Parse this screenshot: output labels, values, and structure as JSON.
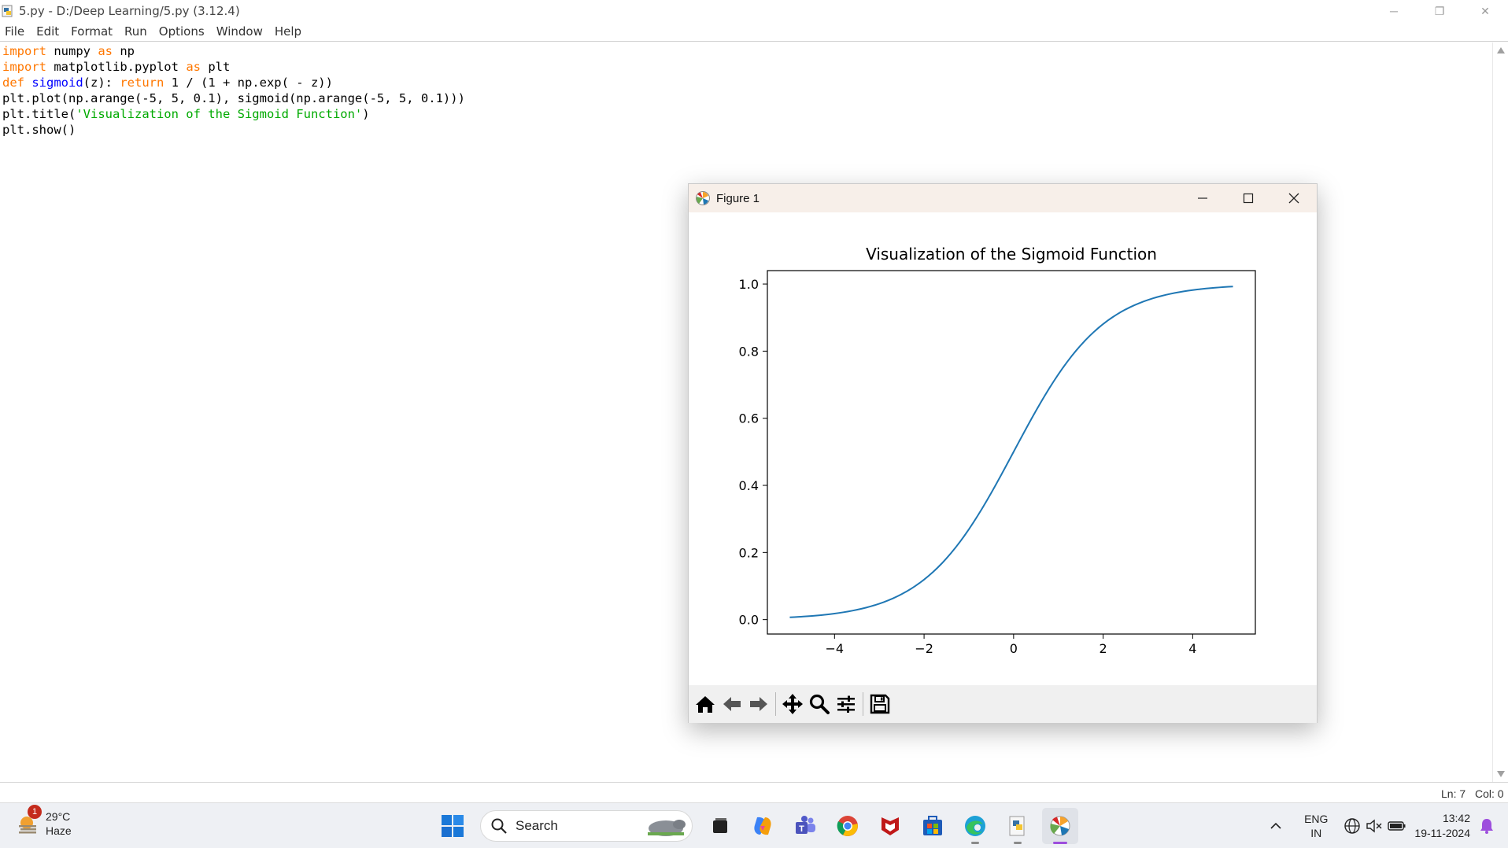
{
  "window": {
    "title": "5.py - D:/Deep Learning/5.py (3.12.4)",
    "minimize": "─",
    "maximize": "❐",
    "close": "✕"
  },
  "menu": [
    "File",
    "Edit",
    "Format",
    "Run",
    "Options",
    "Window",
    "Help"
  ],
  "code": {
    "line1": {
      "kw1": "import",
      "mid": " numpy ",
      "kw2": "as",
      "end": " np"
    },
    "line2": {
      "kw1": "import",
      "mid": " matplotlib.pyplot ",
      "kw2": "as",
      "end": " plt"
    },
    "line3": {
      "kw1": "def",
      "fn": " sigmoid",
      "mid": "(z): ",
      "kw2": "return",
      "end": " 1 / (1 + np.exp( - z))"
    },
    "line4": "plt.plot(np.arange(-5, 5, 0.1), sigmoid(np.arange(-5, 5, 0.1)))",
    "line5": {
      "start": "plt.title(",
      "str": "'Visualization of the Sigmoid Function'",
      "end": ")"
    },
    "line6": "plt.show()"
  },
  "status": {
    "line": "Ln: 7",
    "col": "Col: 0"
  },
  "figure": {
    "title": "Figure 1",
    "toolbar": [
      "home-icon",
      "back-icon",
      "forward-icon",
      "pan-icon",
      "zoom-icon",
      "configure-icon",
      "save-icon"
    ]
  },
  "chart_data": {
    "type": "line",
    "title": "Visualization of the Sigmoid Function",
    "xlabel": "",
    "ylabel": "",
    "x_start": -5,
    "x_stop": 5,
    "x_step": 0.1,
    "function": "1 / (1 + exp(-x))",
    "xlim": [
      -5.5,
      5.4
    ],
    "ylim": [
      -0.043,
      1.04
    ],
    "xticks": [
      -4,
      -2,
      0,
      2,
      4
    ],
    "xtick_labels": [
      "−4",
      "−2",
      "0",
      "2",
      "4"
    ],
    "yticks": [
      0.0,
      0.2,
      0.4,
      0.6,
      0.8,
      1.0
    ],
    "ytick_labels": [
      "0.0",
      "0.2",
      "0.4",
      "0.6",
      "0.8",
      "1.0"
    ],
    "line_color": "#1f77b4",
    "grid": false
  },
  "taskbar": {
    "weather_temp": "29°C",
    "weather_desc": "Haze",
    "weather_badge": "1",
    "search_label": "Search",
    "lang_top": "ENG",
    "lang_bottom": "IN",
    "time": "13:42",
    "date": "19-11-2024"
  }
}
